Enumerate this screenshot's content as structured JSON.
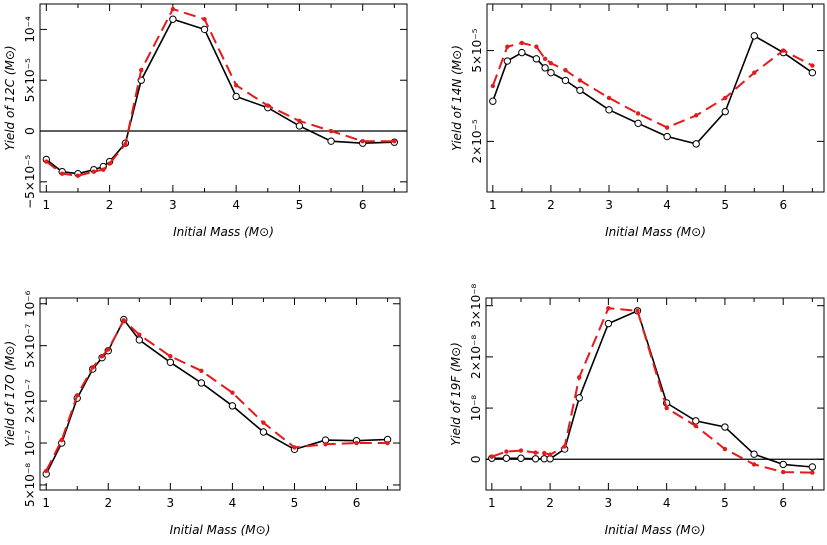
{
  "colors": {
    "model_a": "#000000",
    "model_b": "#e41a1c"
  },
  "chart_data": [
    {
      "type": "line",
      "xlabel": "Initial Mass (M⊙)",
      "ylabel": "Yield of 12C (M⊙)",
      "yscale": "linear",
      "xlim": [
        0.9,
        6.7
      ],
      "ylim": [
        -6e-05,
        0.000125
      ],
      "zero_line": true,
      "xticks": [
        1,
        2,
        3,
        4,
        5,
        6
      ],
      "xtick_labels": [
        "1",
        "2",
        "3",
        "4",
        "5",
        "6"
      ],
      "yticks": [
        -5e-05,
        0,
        5e-05,
        0.0001
      ],
      "ytick_labels": [
        "−5×10⁻⁵",
        "0",
        "5×10⁻⁵",
        "10⁻⁴"
      ],
      "series": [
        {
          "style": "solid",
          "color": "#000000",
          "markers": "open-circle",
          "x": [
            1.0,
            1.25,
            1.5,
            1.75,
            1.9,
            2.0,
            2.25,
            2.5,
            3.0,
            3.5,
            4.0,
            4.5,
            5.0,
            5.5,
            6.0,
            6.5
          ],
          "y": [
            -2.8e-05,
            -4e-05,
            -4.2e-05,
            -3.8e-05,
            -3.5e-05,
            -3e-05,
            -1.2e-05,
            5e-05,
            0.00011,
            0.0001,
            3.4e-05,
            2.3e-05,
            5e-06,
            -1e-05,
            -1.2e-05,
            -1.1e-05
          ]
        },
        {
          "style": "dashed",
          "color": "#e41a1c",
          "markers": "filled-dot",
          "x": [
            1.0,
            1.25,
            1.5,
            1.75,
            1.9,
            2.0,
            2.25,
            2.5,
            3.0,
            3.5,
            4.0,
            4.5,
            5.0,
            5.5,
            6.0,
            6.5
          ],
          "y": [
            -3e-05,
            -4.2e-05,
            -4.4e-05,
            -4e-05,
            -3.8e-05,
            -3.2e-05,
            -1.3e-05,
            6e-05,
            0.00012,
            0.00011,
            4.5e-05,
            2.5e-05,
            1e-05,
            0.0,
            -1e-05,
            -1e-05
          ]
        }
      ]
    },
    {
      "type": "line",
      "xlabel": "Initial Mass (M⊙)",
      "ylabel": "Yield of 14N (M⊙)",
      "yscale": "log",
      "xlim": [
        0.9,
        6.7
      ],
      "ylim": [
        1.2e-05,
        8e-05
      ],
      "zero_line": false,
      "xticks": [
        1,
        2,
        3,
        4,
        5,
        6
      ],
      "xtick_labels": [
        "1",
        "2",
        "3",
        "4",
        "5",
        "6"
      ],
      "yticks": [
        2e-05,
        5e-05
      ],
      "ytick_labels": [
        "2×10⁻⁵",
        "5×10⁻⁵"
      ],
      "series": [
        {
          "style": "solid",
          "color": "#000000",
          "markers": "open-circle",
          "x": [
            1.0,
            1.25,
            1.5,
            1.75,
            1.9,
            2.0,
            2.25,
            2.5,
            3.0,
            3.5,
            4.0,
            4.5,
            5.0,
            5.5,
            6.0,
            6.5
          ],
          "y": [
            3e-05,
            4.5e-05,
            4.9e-05,
            4.6e-05,
            4.2e-05,
            4e-05,
            3.7e-05,
            3.35e-05,
            2.75e-05,
            2.4e-05,
            2.1e-05,
            1.95e-05,
            2.7e-05,
            5.8e-05,
            4.9e-05,
            4e-05
          ]
        },
        {
          "style": "dashed",
          "color": "#e41a1c",
          "markers": "filled-dot",
          "x": [
            1.0,
            1.25,
            1.5,
            1.75,
            1.9,
            2.0,
            2.25,
            2.5,
            3.0,
            3.5,
            4.0,
            4.5,
            5.0,
            5.5,
            6.0,
            6.5
          ],
          "y": [
            3.5e-05,
            5.2e-05,
            5.4e-05,
            5.2e-05,
            4.6e-05,
            4.4e-05,
            4.1e-05,
            3.7e-05,
            3.1e-05,
            2.65e-05,
            2.3e-05,
            2.6e-05,
            3.1e-05,
            4e-05,
            5e-05,
            4.3e-05
          ]
        }
      ]
    },
    {
      "type": "line",
      "xlabel": "Initial Mass (M⊙)",
      "ylabel": "Yield of 17O (M⊙)",
      "yscale": "log",
      "xlim": [
        0.9,
        6.7
      ],
      "ylim": [
        4.6e-08,
        1.1e-06
      ],
      "zero_line": false,
      "xticks": [
        1,
        2,
        3,
        4,
        5,
        6
      ],
      "xtick_labels": [
        "1",
        "2",
        "3",
        "4",
        "5",
        "6"
      ],
      "yticks": [
        5e-08,
        1e-07,
        2e-07,
        5e-07,
        1e-06
      ],
      "ytick_labels": [
        "5×10⁻⁸",
        "10⁻⁷",
        "2×10⁻⁷",
        "5×10⁻⁷",
        "10⁻⁶"
      ],
      "series": [
        {
          "style": "solid",
          "color": "#000000",
          "markers": "open-circle",
          "x": [
            1.0,
            1.25,
            1.5,
            1.75,
            1.9,
            2.0,
            2.25,
            2.5,
            3.0,
            3.5,
            4.0,
            4.5,
            5.0,
            5.5,
            6.0,
            6.5
          ],
          "y": [
            6e-08,
            1e-07,
            2.1e-07,
            3.4e-07,
            4.1e-07,
            4.6e-07,
            7.7e-07,
            5.5e-07,
            3.8e-07,
            2.7e-07,
            1.85e-07,
            1.2e-07,
            9e-08,
            1.05e-07,
            1.04e-07,
            1.06e-07
          ]
        },
        {
          "style": "dashed",
          "color": "#e41a1c",
          "markers": "filled-dot",
          "x": [
            1.0,
            1.25,
            1.5,
            1.75,
            1.9,
            2.0,
            2.25,
            2.5,
            3.0,
            3.5,
            4.0,
            4.5,
            5.0,
            5.5,
            6.0,
            6.5
          ],
          "y": [
            6.3e-08,
            1.05e-07,
            2.2e-07,
            3.5e-07,
            4.2e-07,
            4.7e-07,
            7.6e-07,
            6e-07,
            4.2e-07,
            3.3e-07,
            2.3e-07,
            1.4e-07,
            9.3e-08,
            9.8e-08,
            1e-07,
            1e-07
          ]
        }
      ]
    },
    {
      "type": "line",
      "xlabel": "Initial Mass (M⊙)",
      "ylabel": "Yield of 19F (M⊙)",
      "yscale": "linear",
      "xlim": [
        0.9,
        6.7
      ],
      "ylim": [
        -6e-09,
        3.15e-08
      ],
      "zero_line": true,
      "xticks": [
        1,
        2,
        3,
        4,
        5,
        6
      ],
      "xtick_labels": [
        "1",
        "2",
        "3",
        "4",
        "5",
        "6"
      ],
      "yticks": [
        0,
        1e-08,
        2e-08,
        3e-08
      ],
      "ytick_labels": [
        "0",
        "10⁻⁸",
        "2×10⁻⁸",
        "3×10⁻⁸"
      ],
      "series": [
        {
          "style": "solid",
          "color": "#000000",
          "markers": "open-circle",
          "x": [
            1.0,
            1.25,
            1.5,
            1.75,
            1.9,
            2.0,
            2.25,
            2.5,
            3.0,
            3.5,
            4.0,
            4.5,
            5.0,
            5.5,
            6.0,
            6.5
          ],
          "y": [
            2e-10,
            2e-10,
            2e-10,
            1e-10,
            1e-10,
            1e-10,
            2e-09,
            1.2e-08,
            2.65e-08,
            2.9e-08,
            1.1e-08,
            7.5e-09,
            6.3e-09,
            1e-09,
            -1e-09,
            -1.5e-09
          ]
        },
        {
          "style": "dashed",
          "color": "#e41a1c",
          "markers": "filled-dot",
          "x": [
            1.0,
            1.25,
            1.5,
            1.75,
            1.9,
            2.0,
            2.25,
            2.5,
            3.0,
            3.5,
            4.0,
            4.5,
            5.0,
            5.5,
            6.0,
            6.5
          ],
          "y": [
            5e-10,
            1.5e-09,
            1.7e-09,
            1.3e-09,
            1.2e-09,
            9e-10,
            2.5e-09,
            1.6e-08,
            2.95e-08,
            2.9e-08,
            1e-08,
            6.5e-09,
            2e-09,
            -1e-09,
            -2.5e-09,
            -2.6e-09
          ]
        }
      ]
    }
  ]
}
